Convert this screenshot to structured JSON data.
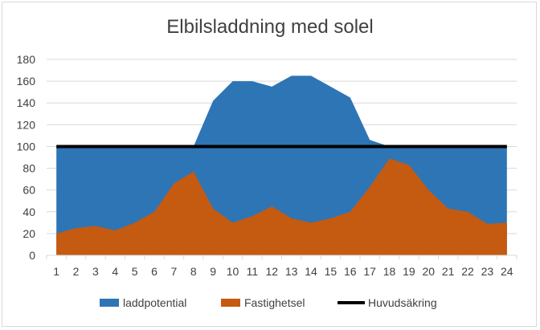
{
  "chart_data": {
    "type": "area",
    "title": "Elbilsladdning med solel",
    "x": [
      1,
      2,
      3,
      4,
      5,
      6,
      7,
      8,
      9,
      10,
      11,
      12,
      13,
      14,
      15,
      16,
      17,
      18,
      19,
      20,
      21,
      22,
      23,
      24
    ],
    "series": [
      {
        "name": "laddpotential",
        "kind": "area",
        "color": "#2e75b6",
        "values": [
          100,
          100,
          100,
          100,
          100,
          100,
          100,
          100,
          142,
          160,
          160,
          155,
          165,
          165,
          155,
          145,
          106,
          100,
          100,
          100,
          100,
          100,
          100,
          100
        ]
      },
      {
        "name": "Fastighetsel",
        "kind": "area",
        "color": "#c55a11",
        "values": [
          20,
          25,
          27,
          23,
          30,
          40,
          66,
          77,
          43,
          30,
          36,
          45,
          34,
          30,
          34,
          40,
          63,
          89,
          83,
          60,
          43,
          40,
          29,
          30
        ]
      },
      {
        "name": "Huvudsäkring",
        "kind": "line",
        "color": "#000000",
        "values": [
          100,
          100,
          100,
          100,
          100,
          100,
          100,
          100,
          100,
          100,
          100,
          100,
          100,
          100,
          100,
          100,
          100,
          100,
          100,
          100,
          100,
          100,
          100,
          100
        ]
      }
    ],
    "ylim": [
      0,
      180
    ],
    "yticks": [
      0,
      20,
      40,
      60,
      80,
      100,
      120,
      140,
      160,
      180
    ],
    "grid": true,
    "legend": "bottom"
  }
}
